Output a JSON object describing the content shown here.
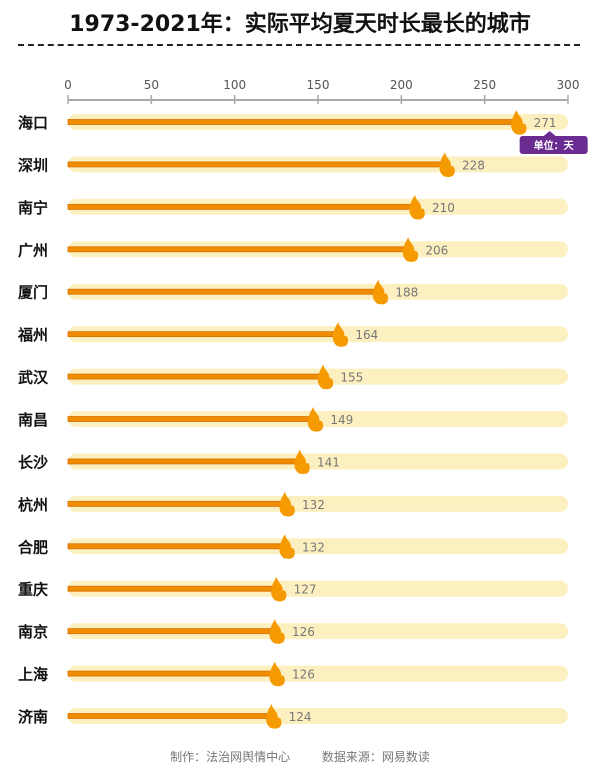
{
  "chart_data": {
    "type": "bar",
    "title": "1973-2021年：实际平均夏天时长最长的城市",
    "categories": [
      "海口",
      "深圳",
      "南宁",
      "广州",
      "厦门",
      "福州",
      "武汉",
      "南昌",
      "长沙",
      "杭州",
      "合肥",
      "重庆",
      "南京",
      "上海",
      "济南"
    ],
    "values": [
      271,
      228,
      210,
      206,
      188,
      164,
      155,
      149,
      141,
      132,
      132,
      127,
      126,
      126,
      124
    ],
    "xlim": [
      0,
      300
    ],
    "xticks": [
      0,
      50,
      100,
      150,
      200,
      250,
      300
    ],
    "unit_label": "单位：天",
    "colors": {
      "bar": "#f08c00",
      "track": "#fdf0c0",
      "tooltip": "#6a2c91",
      "flame": "#f59a00"
    }
  },
  "footer": {
    "maker": "制作：法治网舆情中心",
    "source": "数据来源：网易数读"
  }
}
